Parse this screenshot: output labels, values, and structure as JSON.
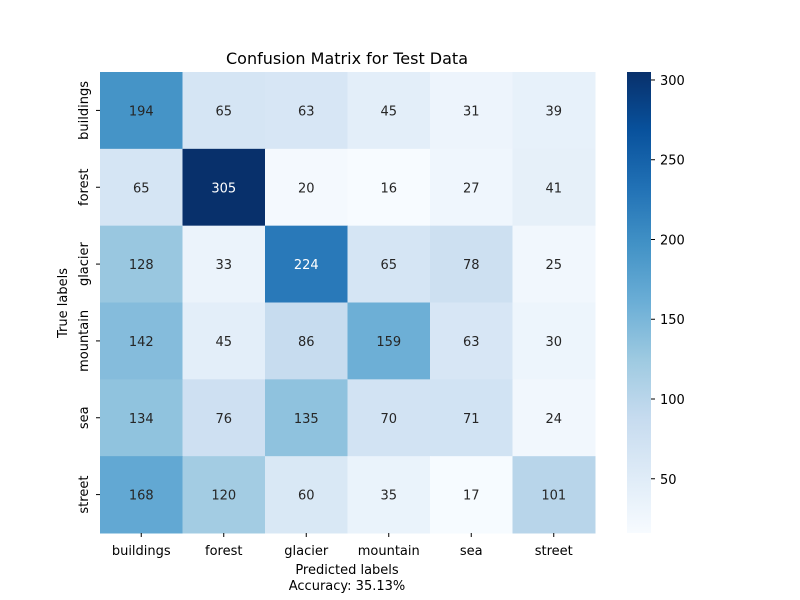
{
  "chart_data": {
    "type": "heatmap",
    "title": "Confusion Matrix for Test Data",
    "xlabel": "Predicted labels",
    "ylabel": "True labels",
    "caption": "Accuracy: 35.13%",
    "x_categories": [
      "buildings",
      "forest",
      "glacier",
      "mountain",
      "sea",
      "street"
    ],
    "y_categories": [
      "buildings",
      "forest",
      "glacier",
      "mountain",
      "sea",
      "street"
    ],
    "values": [
      [
        194,
        65,
        63,
        45,
        31,
        39
      ],
      [
        65,
        305,
        20,
        16,
        27,
        41
      ],
      [
        128,
        33,
        224,
        65,
        78,
        25
      ],
      [
        142,
        45,
        86,
        159,
        63,
        30
      ],
      [
        134,
        76,
        135,
        70,
        71,
        24
      ],
      [
        168,
        120,
        60,
        35,
        17,
        101
      ]
    ],
    "colorbar": {
      "min": 16,
      "max": 305,
      "ticks": [
        50,
        100,
        150,
        200,
        250,
        300
      ],
      "colormap": "Blues"
    },
    "annotations_shown": true
  }
}
